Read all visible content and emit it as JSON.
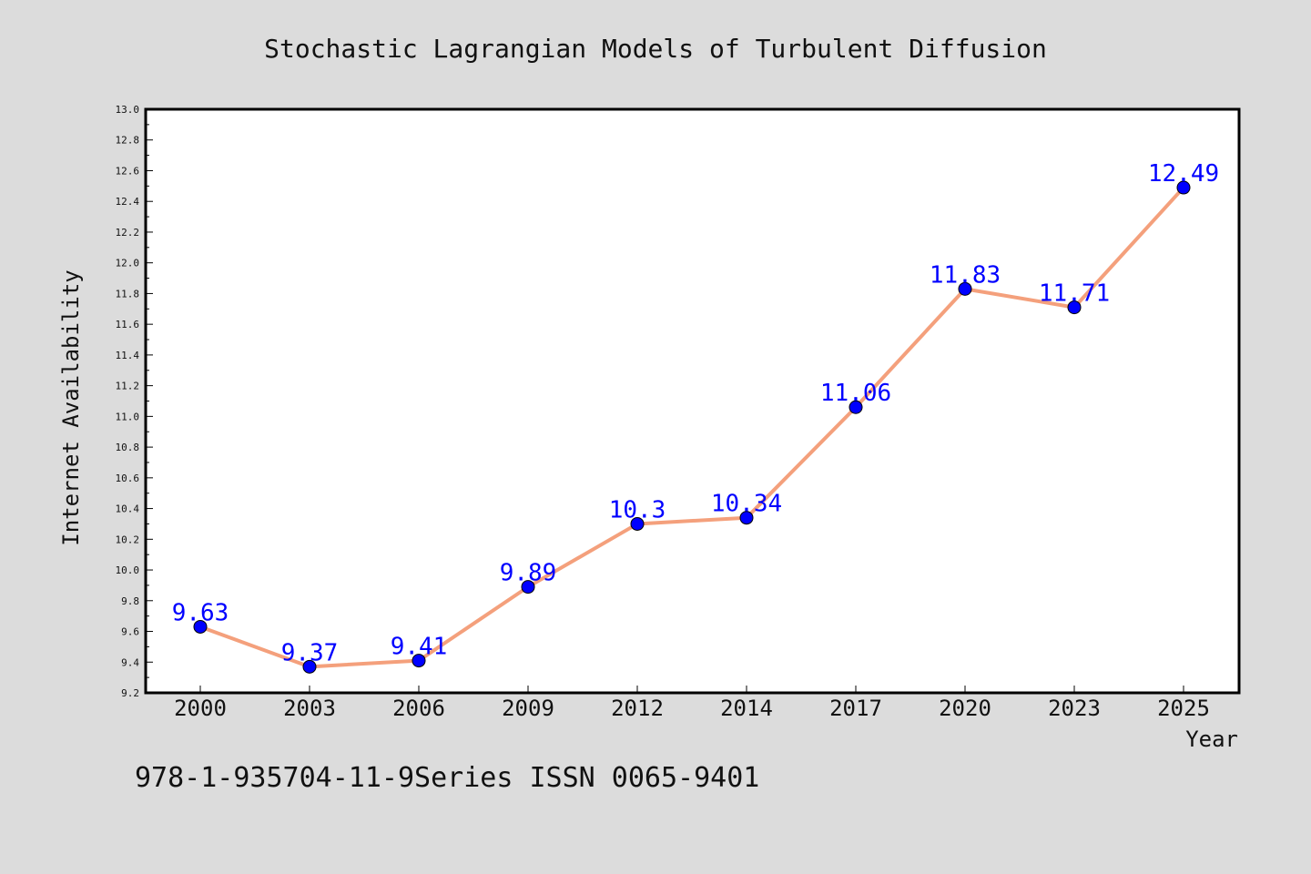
{
  "chart_data": {
    "type": "line",
    "title": "Stochastic Lagrangian Models of Turbulent Diffusion",
    "xlabel": "Year",
    "ylabel": "Internet Availability",
    "categories": [
      "2000",
      "2003",
      "2006",
      "2009",
      "2012",
      "2014",
      "2017",
      "2020",
      "2023",
      "2025"
    ],
    "series": [
      {
        "values": [
          9.63,
          9.37,
          9.41,
          9.89,
          10.3,
          10.34,
          11.06,
          11.83,
          11.71,
          12.49
        ],
        "data_labels": [
          "9.63",
          "9.37",
          "9.41",
          "9.89",
          "10.3",
          "10.34",
          "11.06",
          "11.83",
          "11.71",
          "12.49"
        ],
        "line_color": "#f4a07c",
        "marker_color": "#0000ff"
      }
    ],
    "ylim": [
      9.2,
      13.0
    ],
    "yticks": [
      "9.2",
      "9.4",
      "9.6",
      "9.8",
      "10.0",
      "10.2",
      "10.4",
      "10.6",
      "10.8",
      "11.0",
      "11.2",
      "11.4",
      "11.6",
      "11.8",
      "12.0",
      "12.2",
      "12.4",
      "12.6",
      "12.8",
      "13.0"
    ],
    "grid": false,
    "label_color": "#0000ff",
    "background": "#dcdcdc",
    "plot_background": "#ffffff"
  },
  "footer": {
    "text": "978-1-935704-11-9Series ISSN 0065-9401"
  }
}
